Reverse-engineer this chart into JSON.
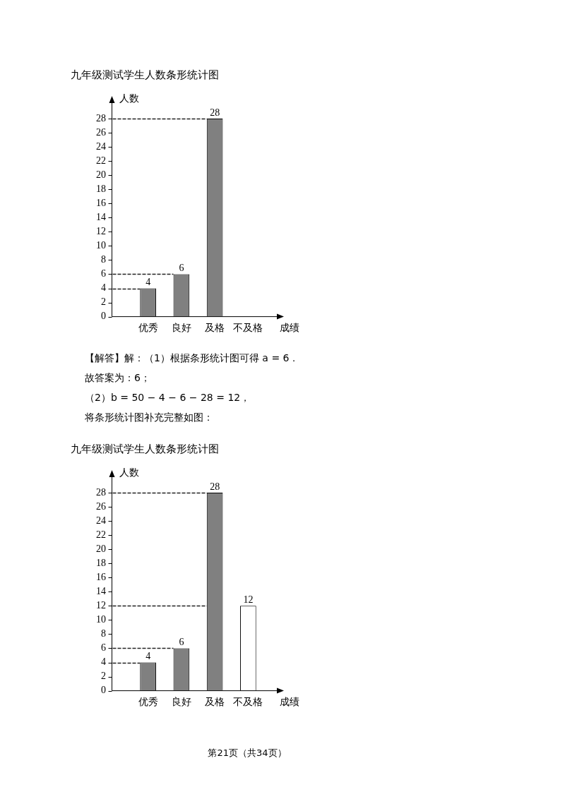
{
  "chart_data": [
    {
      "type": "bar",
      "title": "九年级测试学生人数条形统计图",
      "xlabel": "成绩",
      "ylabel": "人数",
      "categories": [
        "优秀",
        "良好",
        "及格",
        "不及格"
      ],
      "values": [
        4,
        6,
        28,
        null
      ],
      "colors": [
        "#808080",
        "#808080",
        "#808080",
        "#ffffff"
      ],
      "ylim": [
        0,
        31
      ],
      "yticks": [
        0,
        2,
        4,
        6,
        8,
        10,
        12,
        14,
        16,
        18,
        20,
        22,
        24,
        26,
        28
      ],
      "data_labels": true,
      "ref_lines": [
        {
          "axis": "y",
          "value": 4,
          "line_style": "dashed"
        },
        {
          "axis": "y",
          "value": 6,
          "line_style": "dashed"
        },
        {
          "axis": "y",
          "value": 28,
          "line_style": "dashed"
        }
      ],
      "annotations": [
        "【解答】解：（1）根据条形统计图可得 a = 6．",
        "故答案为：6；",
        "（2）b = 50 − 4 − 6 − 28 = 12，",
        "将条形统计图补充完整如图："
      ]
    },
    {
      "type": "bar",
      "title": "九年级测试学生人数条形统计图",
      "xlabel": "成绩",
      "ylabel": "人数",
      "categories": [
        "优秀",
        "良好",
        "及格",
        "不及格"
      ],
      "values": [
        4,
        6,
        28,
        12
      ],
      "colors": [
        "#808080",
        "#808080",
        "#808080",
        "#ffffff"
      ],
      "ylim": [
        0,
        31
      ],
      "yticks": [
        0,
        2,
        4,
        6,
        8,
        10,
        12,
        14,
        16,
        18,
        20,
        22,
        24,
        26,
        28
      ],
      "data_labels": true,
      "ref_lines": [
        {
          "axis": "y",
          "value": 4,
          "line_style": "dashed"
        },
        {
          "axis": "y",
          "value": 6,
          "line_style": "dashed"
        },
        {
          "axis": "y",
          "value": 12,
          "line_style": "dashed"
        },
        {
          "axis": "y",
          "value": 28,
          "line_style": "dashed"
        }
      ],
      "annotations": [
        "第21页（共34页）"
      ]
    }
  ]
}
